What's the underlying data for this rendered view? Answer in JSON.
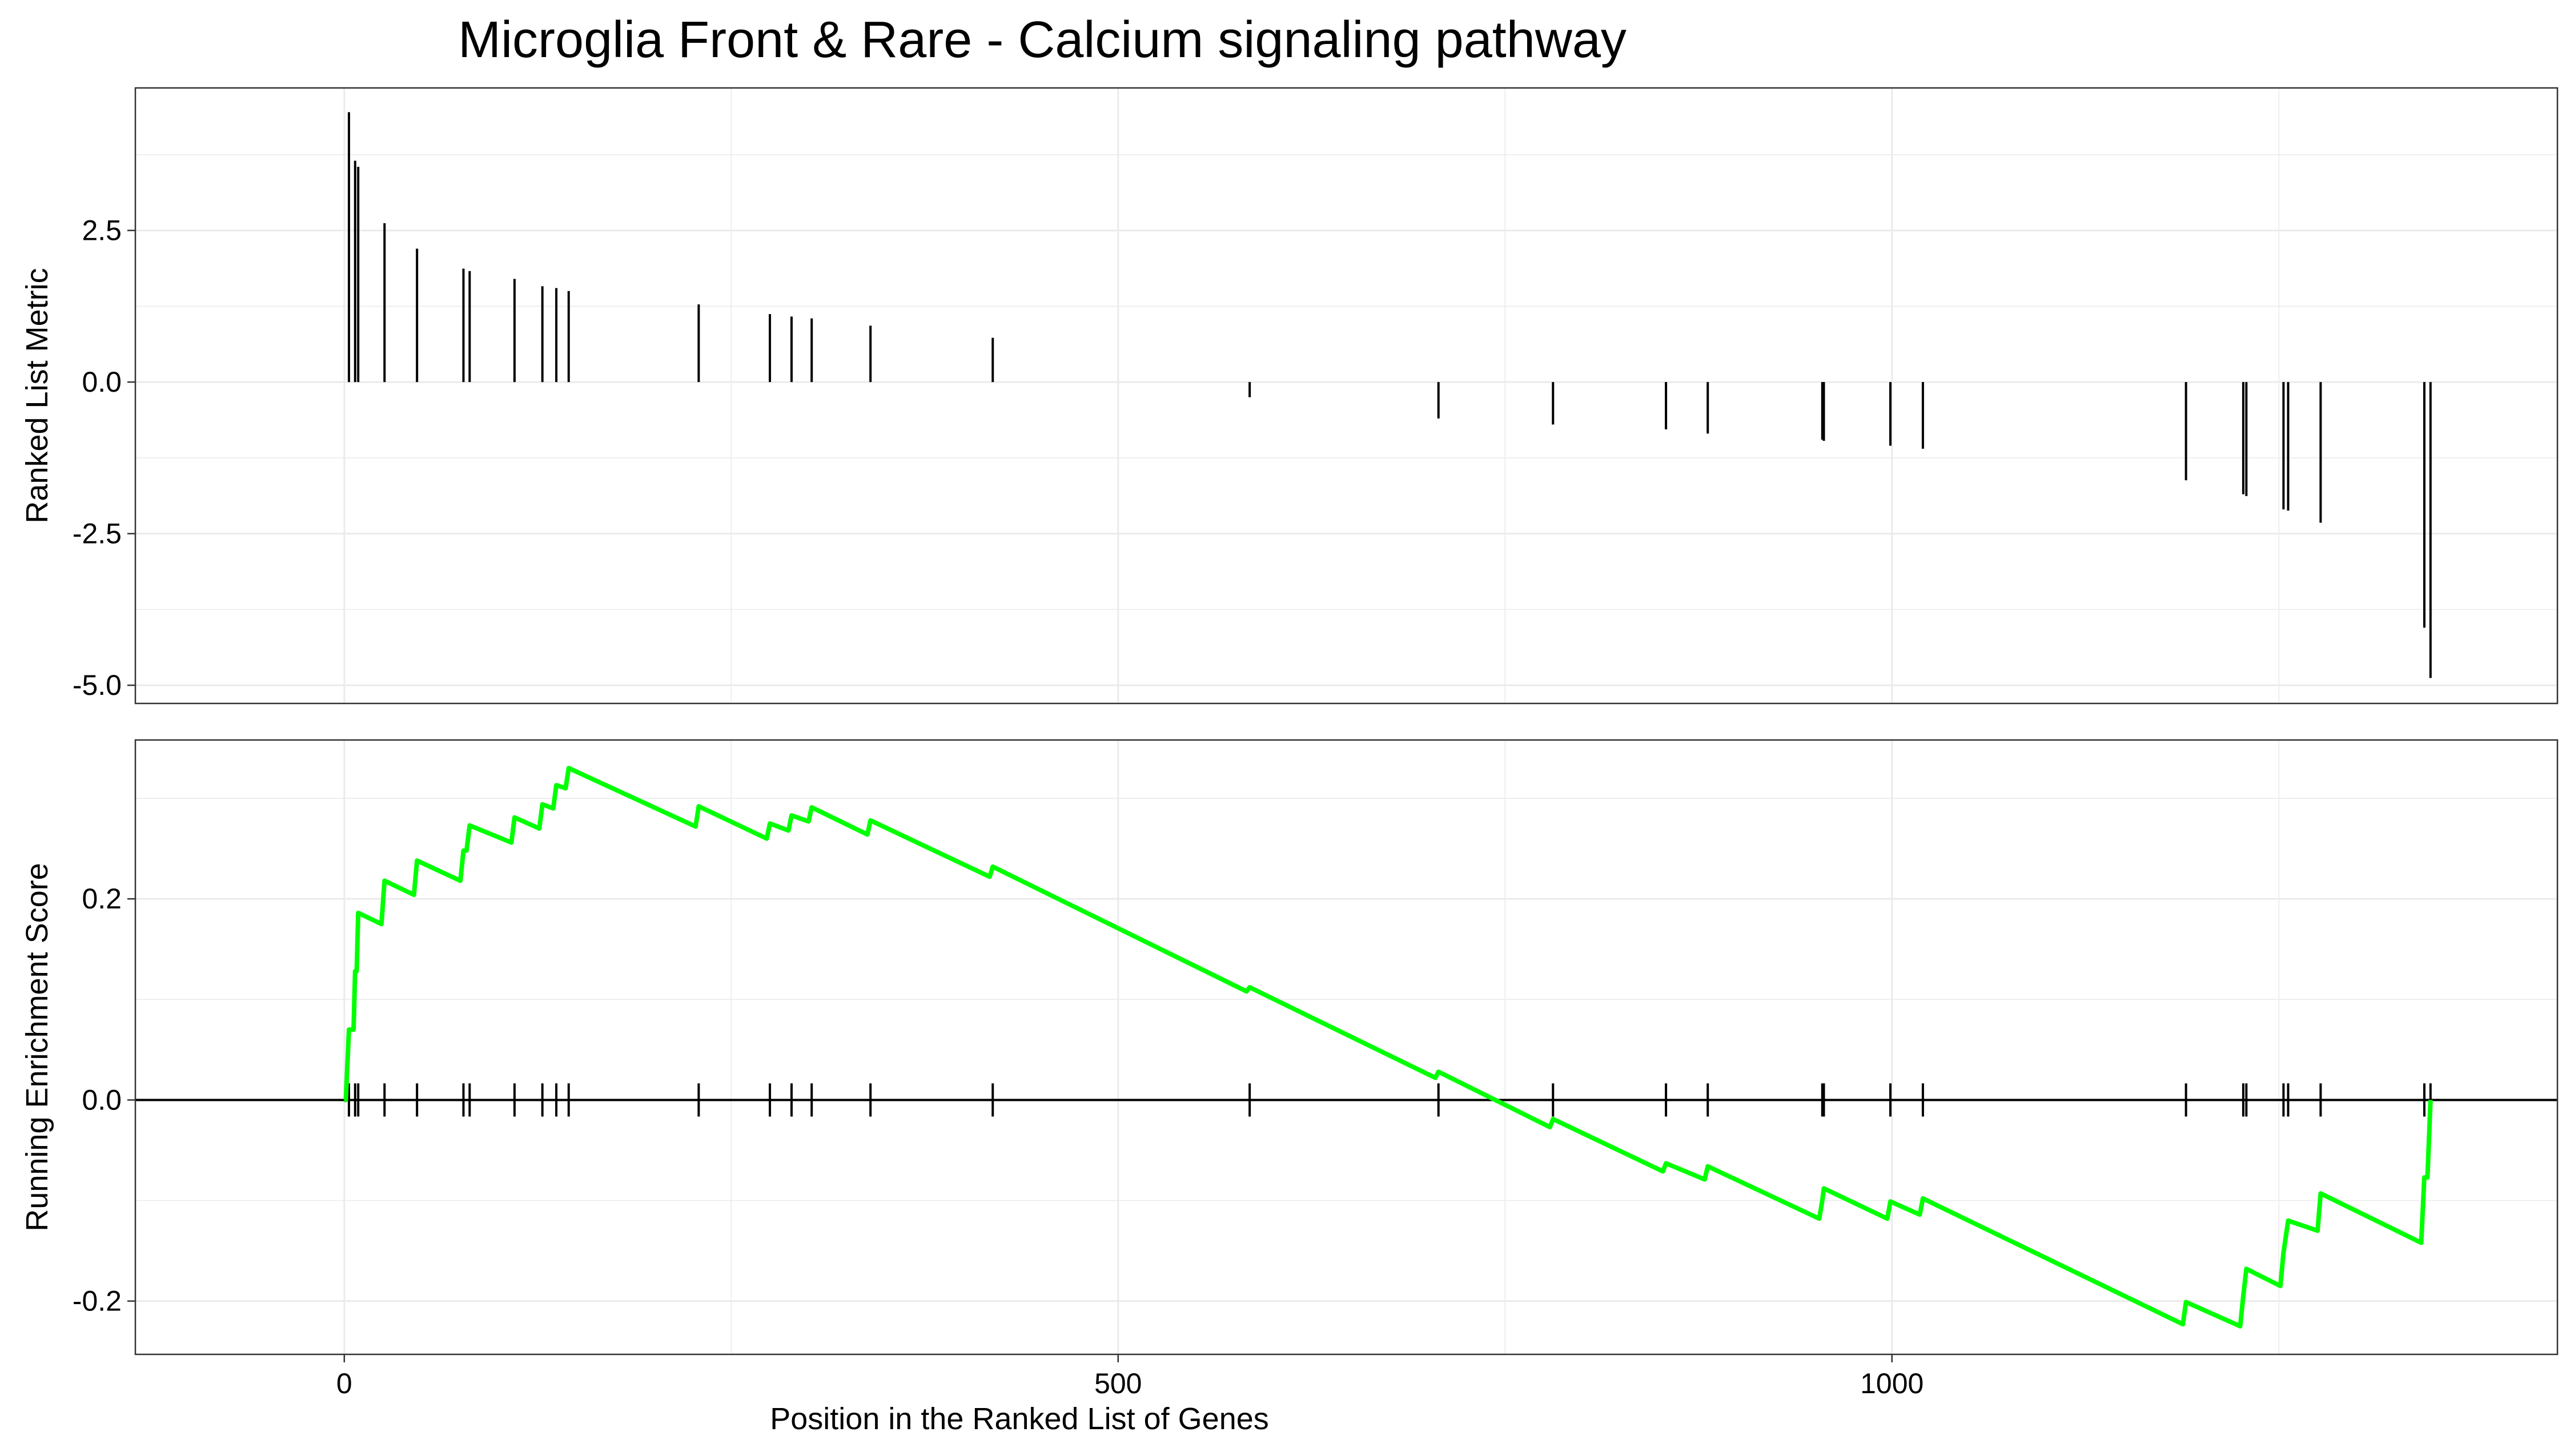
{
  "chart_data": {
    "type": "line",
    "title": "Microglia Front & Rare - Calcium signaling pathway",
    "xlabel": "Position in the Ranked List of Genes",
    "xlim": [
      -135,
      1430
    ],
    "x_ticks": [
      0,
      500,
      1000
    ],
    "x_tick_labels": [
      "0",
      "500",
      "1000"
    ],
    "grid": true,
    "colors": {
      "es_line": "#00FF00",
      "bars": "#000000",
      "hits": "#000000",
      "zero_line": "#000000",
      "grid": "#EBEBEB",
      "panel_border": "#333333"
    },
    "hit_positions": [
      3,
      7,
      9,
      26,
      47,
      77,
      81,
      110,
      128,
      137,
      145,
      229,
      275,
      289,
      302,
      340,
      419,
      585,
      707,
      781,
      854,
      881,
      955,
      956,
      999,
      1020,
      1190,
      1227,
      1229,
      1253,
      1256,
      1277,
      1344,
      1348
    ],
    "panels": [
      {
        "id": "ranked-metric",
        "ylabel": "Ranked List Metric",
        "ylim": [
          -5.3,
          4.85
        ],
        "y_ticks": [
          2.5,
          0,
          -2.5,
          -5
        ],
        "y_tick_labels": [
          "2.5",
          "0.0",
          "-2.5",
          "-5.0"
        ],
        "bars": [
          {
            "x": 3,
            "y": 4.45
          },
          {
            "x": 7,
            "y": 3.65
          },
          {
            "x": 9,
            "y": 3.55
          },
          {
            "x": 26,
            "y": 2.62
          },
          {
            "x": 47,
            "y": 2.2
          },
          {
            "x": 77,
            "y": 1.87
          },
          {
            "x": 81,
            "y": 1.83
          },
          {
            "x": 110,
            "y": 1.7
          },
          {
            "x": 128,
            "y": 1.58
          },
          {
            "x": 137,
            "y": 1.55
          },
          {
            "x": 145,
            "y": 1.5
          },
          {
            "x": 229,
            "y": 1.28
          },
          {
            "x": 275,
            "y": 1.12
          },
          {
            "x": 289,
            "y": 1.08
          },
          {
            "x": 302,
            "y": 1.05
          },
          {
            "x": 340,
            "y": 0.93
          },
          {
            "x": 419,
            "y": 0.73
          },
          {
            "x": 585,
            "y": -0.25
          },
          {
            "x": 707,
            "y": -0.6
          },
          {
            "x": 781,
            "y": -0.7
          },
          {
            "x": 854,
            "y": -0.78
          },
          {
            "x": 881,
            "y": -0.85
          },
          {
            "x": 955,
            "y": -0.95
          },
          {
            "x": 956,
            "y": -0.97
          },
          {
            "x": 999,
            "y": -1.05
          },
          {
            "x": 1020,
            "y": -1.1
          },
          {
            "x": 1190,
            "y": -1.62
          },
          {
            "x": 1227,
            "y": -1.85
          },
          {
            "x": 1229,
            "y": -1.88
          },
          {
            "x": 1253,
            "y": -2.1
          },
          {
            "x": 1256,
            "y": -2.12
          },
          {
            "x": 1277,
            "y": -2.32
          },
          {
            "x": 1344,
            "y": -4.05
          },
          {
            "x": 1348,
            "y": -4.88
          }
        ]
      },
      {
        "id": "running-es",
        "ylabel": "Running Enrichment Score",
        "ylim": [
          -0.253,
          0.358
        ],
        "y_ticks": [
          0.2,
          0,
          -0.2
        ],
        "y_tick_labels": [
          "0.2",
          "0.0",
          "-0.2"
        ],
        "es_points": [
          [
            0,
            0.0
          ],
          [
            1,
            0.0
          ],
          [
            3,
            0.07
          ],
          [
            6,
            0.07
          ],
          [
            7,
            0.128
          ],
          [
            8,
            0.128
          ],
          [
            9,
            0.186
          ],
          [
            24,
            0.175
          ],
          [
            26,
            0.218
          ],
          [
            45,
            0.204
          ],
          [
            47,
            0.238
          ],
          [
            75,
            0.218
          ],
          [
            77,
            0.248
          ],
          [
            79,
            0.248
          ],
          [
            81,
            0.273
          ],
          [
            108,
            0.256
          ],
          [
            110,
            0.281
          ],
          [
            126,
            0.27
          ],
          [
            128,
            0.294
          ],
          [
            135,
            0.29
          ],
          [
            137,
            0.313
          ],
          [
            143,
            0.31
          ],
          [
            145,
            0.33
          ],
          [
            227,
            0.272
          ],
          [
            229,
            0.292
          ],
          [
            273,
            0.26
          ],
          [
            275,
            0.275
          ],
          [
            287,
            0.268
          ],
          [
            289,
            0.283
          ],
          [
            300,
            0.277
          ],
          [
            302,
            0.291
          ],
          [
            338,
            0.264
          ],
          [
            340,
            0.278
          ],
          [
            417,
            0.222
          ],
          [
            419,
            0.232
          ],
          [
            583,
            0.108
          ],
          [
            585,
            0.112
          ],
          [
            705,
            0.022
          ],
          [
            707,
            0.028
          ],
          [
            779,
            -0.027
          ],
          [
            781,
            -0.019
          ],
          [
            852,
            -0.071
          ],
          [
            854,
            -0.063
          ],
          [
            879,
            -0.079
          ],
          [
            881,
            -0.066
          ],
          [
            953,
            -0.118
          ],
          [
            955,
            -0.1
          ],
          [
            956,
            -0.088
          ],
          [
            997,
            -0.118
          ],
          [
            999,
            -0.101
          ],
          [
            1018,
            -0.114
          ],
          [
            1020,
            -0.098
          ],
          [
            1188,
            -0.223
          ],
          [
            1190,
            -0.201
          ],
          [
            1225,
            -0.225
          ],
          [
            1227,
            -0.195
          ],
          [
            1229,
            -0.168
          ],
          [
            1251,
            -0.185
          ],
          [
            1253,
            -0.152
          ],
          [
            1256,
            -0.12
          ],
          [
            1275,
            -0.13
          ],
          [
            1277,
            -0.093
          ],
          [
            1342,
            -0.142
          ],
          [
            1344,
            -0.077
          ],
          [
            1346,
            -0.077
          ],
          [
            1348,
            0.0
          ]
        ]
      }
    ]
  }
}
